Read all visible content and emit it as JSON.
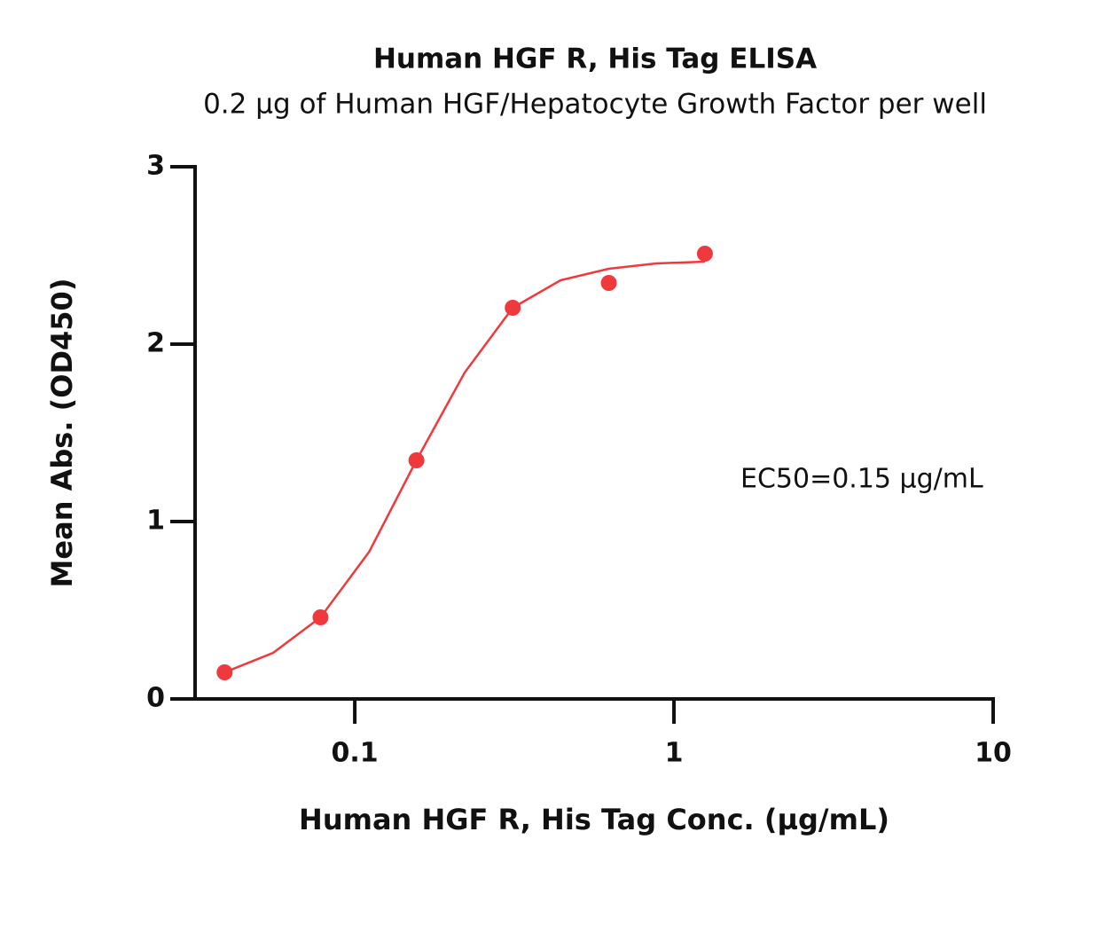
{
  "chart_data": {
    "type": "scatter",
    "title": "Human HGF R, His Tag ELISA",
    "subtitle": "0.2 µg of Human HGF/Hepatocyte Growth Factor per well",
    "x_label": "Human HGF R, His Tag Conc. (µg/mL)",
    "y_label": "Mean Abs. (OD450)",
    "annotation": "EC50=0.15 µg/mL",
    "x_log": true,
    "xlim": [
      0.0316,
      10
    ],
    "xticks": [
      0.1,
      1,
      10
    ],
    "ylim": [
      0,
      3
    ],
    "yticks": [
      0,
      1,
      2,
      3
    ],
    "series": [
      {
        "color": "#f0393c",
        "mode": "markers",
        "x": [
          0.0391,
          0.0781,
          0.156,
          0.3125,
          0.625,
          1.25
        ],
        "values": [
          0.15,
          0.46,
          1.345,
          2.205,
          2.345,
          2.51
        ]
      },
      {
        "color": "#f0393c",
        "mode": "line",
        "x": [
          0.0391,
          0.0555,
          0.0781,
          0.111,
          0.156,
          0.221,
          0.3125,
          0.441,
          0.625,
          0.88,
          1.25
        ],
        "values": [
          0.15,
          0.26,
          0.46,
          0.83,
          1.345,
          1.84,
          2.205,
          2.36,
          2.425,
          2.455,
          2.465
        ]
      }
    ]
  }
}
